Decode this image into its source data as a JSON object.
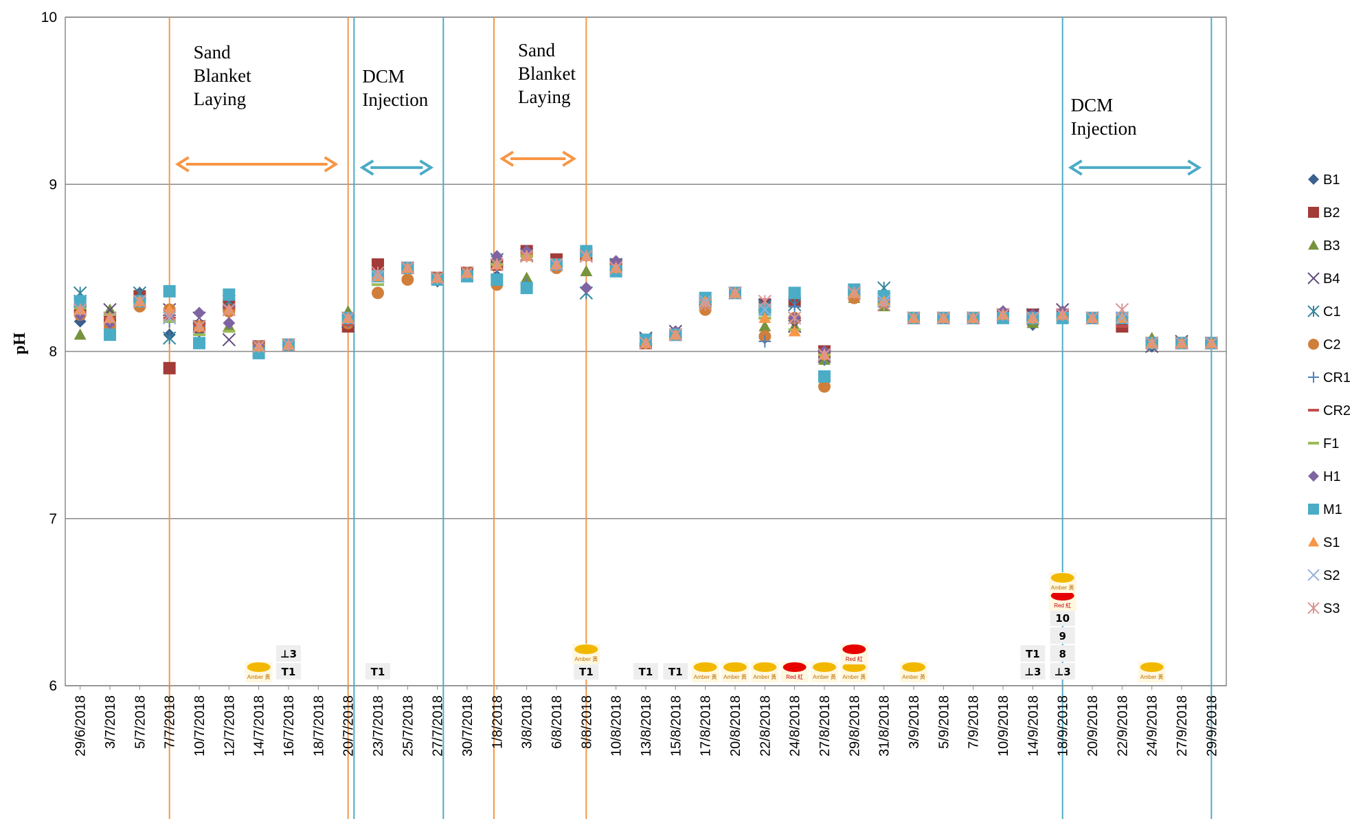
{
  "chart_data": {
    "type": "scatter",
    "title": "",
    "xlabel": "",
    "ylabel": "pH",
    "ylim": [
      6,
      10
    ],
    "yticks": [
      "6",
      "7",
      "8",
      "9",
      "10"
    ],
    "grid": true,
    "legend_position": "right",
    "categories": [
      "29/6/2018",
      "3/7/2018",
      "5/7/2018",
      "7/7/2018",
      "10/7/2018",
      "12/7/2018",
      "14/7/2018",
      "16/7/2018",
      "18/7/2018",
      "20/7/2018",
      "23/7/2018",
      "25/7/2018",
      "27/7/2018",
      "30/7/2018",
      "1/8/2018",
      "3/8/2018",
      "6/8/2018",
      "8/8/2018",
      "10/8/2018",
      "13/8/2018",
      "15/8/2018",
      "17/8/2018",
      "20/8/2018",
      "22/8/2018",
      "24/8/2018",
      "27/8/2018",
      "29/8/2018",
      "31/8/2018",
      "3/9/2018",
      "5/9/2018",
      "7/9/2018",
      "10/9/2018",
      "14/9/2018",
      "18/9/2018",
      "20/9/2018",
      "22/9/2018",
      "24/9/2018",
      "27/9/2018",
      "29/9/2018"
    ],
    "series": [
      {
        "name": "B1",
        "color": "#3b5f8f",
        "marker": "diamond",
        "values": [
          8.18,
          8.15,
          8.35,
          8.1,
          8.12,
          8.3,
          8.02,
          8.04,
          null,
          8.17,
          8.45,
          8.5,
          8.42,
          8.47,
          8.45,
          8.38,
          8.52,
          8.57,
          8.5,
          8.05,
          8.1,
          8.3,
          8.35,
          8.08,
          8.3,
          7.95,
          8.35,
          8.3,
          8.2,
          8.2,
          8.2,
          8.22,
          8.16,
          8.22,
          8.2,
          8.2,
          8.03,
          8.05,
          8.05
        ]
      },
      {
        "name": "B2",
        "color": "#a33b38",
        "marker": "square",
        "values": [
          8.25,
          8.2,
          8.33,
          7.9,
          8.15,
          8.28,
          8.03,
          8.04,
          null,
          8.15,
          8.52,
          8.5,
          8.44,
          8.47,
          8.52,
          8.6,
          8.55,
          8.58,
          8.52,
          8.05,
          8.1,
          8.3,
          8.35,
          8.28,
          8.3,
          8.0,
          8.35,
          8.3,
          8.2,
          8.2,
          8.2,
          8.22,
          8.22,
          8.22,
          8.2,
          8.15,
          8.05,
          8.05,
          8.05
        ]
      },
      {
        "name": "B3",
        "color": "#77933c",
        "marker": "triangle",
        "values": [
          8.1,
          8.25,
          8.3,
          8.2,
          8.15,
          8.15,
          8.03,
          8.04,
          null,
          8.24,
          8.45,
          8.5,
          8.44,
          8.47,
          8.55,
          8.44,
          8.52,
          8.48,
          8.52,
          8.07,
          8.1,
          8.28,
          8.35,
          8.15,
          8.15,
          7.95,
          8.32,
          8.27,
          8.2,
          8.2,
          8.2,
          8.22,
          8.17,
          8.22,
          8.2,
          8.2,
          8.08,
          8.05,
          8.05
        ]
      },
      {
        "name": "B4",
        "color": "#604a7b",
        "marker": "x",
        "values": [
          8.3,
          8.25,
          8.3,
          8.25,
          8.2,
          8.07,
          8.03,
          8.04,
          null,
          8.18,
          8.45,
          8.5,
          8.44,
          8.47,
          8.55,
          8.58,
          8.52,
          8.57,
          8.52,
          8.08,
          8.12,
          8.3,
          8.35,
          8.28,
          8.15,
          7.97,
          8.35,
          8.28,
          8.2,
          8.2,
          8.2,
          8.22,
          8.22,
          8.25,
          8.2,
          8.2,
          8.03,
          8.06,
          8.05
        ]
      },
      {
        "name": "C1",
        "color": "#31859c",
        "marker": "asterisk",
        "values": [
          8.35,
          8.2,
          8.35,
          8.08,
          8.15,
          8.3,
          8.03,
          8.04,
          null,
          8.2,
          8.45,
          8.5,
          8.44,
          8.47,
          8.55,
          8.57,
          8.52,
          8.35,
          8.52,
          8.07,
          8.1,
          8.3,
          8.35,
          8.27,
          8.28,
          7.98,
          8.35,
          8.38,
          8.2,
          8.2,
          8.2,
          8.22,
          8.2,
          8.22,
          8.2,
          8.2,
          8.05,
          8.05,
          8.05
        ]
      },
      {
        "name": "C2",
        "color": "#d07f3b",
        "marker": "circle",
        "values": [
          8.22,
          8.15,
          8.27,
          8.25,
          8.15,
          8.24,
          8.03,
          8.04,
          null,
          8.17,
          8.35,
          8.43,
          8.44,
          8.47,
          8.4,
          8.58,
          8.5,
          8.6,
          8.5,
          8.05,
          8.1,
          8.25,
          8.35,
          8.09,
          8.2,
          7.79,
          8.32,
          8.3,
          8.2,
          8.2,
          8.2,
          8.22,
          8.2,
          8.22,
          8.2,
          8.2,
          8.05,
          8.05,
          8.05
        ]
      },
      {
        "name": "CR1",
        "color": "#4f81bd",
        "marker": "plus",
        "values": [
          8.28,
          8.17,
          8.3,
          8.18,
          8.15,
          8.27,
          8.03,
          8.04,
          null,
          8.18,
          8.45,
          8.5,
          8.44,
          8.47,
          8.45,
          8.4,
          8.52,
          8.57,
          8.5,
          8.05,
          8.1,
          8.3,
          8.35,
          8.06,
          8.27,
          7.96,
          8.35,
          8.3,
          8.2,
          8.2,
          8.2,
          8.22,
          8.2,
          8.22,
          8.2,
          8.2,
          8.05,
          8.05,
          8.05
        ]
      },
      {
        "name": "CR2",
        "color": "#c0504d",
        "marker": "dash",
        "values": [
          8.28,
          8.2,
          8.3,
          8.2,
          8.16,
          8.26,
          8.03,
          8.04,
          null,
          8.16,
          8.48,
          8.5,
          8.44,
          8.47,
          8.52,
          8.57,
          8.52,
          8.57,
          8.5,
          8.05,
          8.1,
          8.3,
          8.35,
          8.2,
          8.2,
          7.98,
          8.35,
          8.3,
          8.2,
          8.2,
          8.2,
          8.22,
          8.2,
          8.22,
          8.2,
          8.15,
          8.05,
          8.05,
          8.05
        ]
      },
      {
        "name": "F1",
        "color": "#9bbb59",
        "marker": "dash",
        "values": [
          8.26,
          8.22,
          8.3,
          8.18,
          8.1,
          8.12,
          8.03,
          8.04,
          null,
          8.2,
          8.4,
          8.5,
          8.44,
          8.47,
          8.52,
          8.57,
          8.52,
          8.57,
          8.5,
          8.05,
          8.1,
          8.3,
          8.35,
          8.2,
          8.13,
          7.98,
          8.33,
          8.28,
          8.2,
          8.2,
          8.2,
          8.22,
          8.17,
          8.22,
          8.2,
          8.2,
          8.05,
          8.05,
          8.05
        ]
      },
      {
        "name": "H1",
        "color": "#8064a2",
        "marker": "diamond",
        "values": [
          8.22,
          8.17,
          8.3,
          8.22,
          8.23,
          8.17,
          8.03,
          8.04,
          null,
          8.2,
          8.45,
          8.5,
          8.44,
          8.47,
          8.57,
          8.6,
          8.52,
          8.38,
          8.54,
          8.05,
          8.12,
          8.3,
          8.35,
          8.25,
          8.2,
          8.0,
          8.35,
          8.3,
          8.2,
          8.2,
          8.2,
          8.24,
          8.22,
          8.24,
          8.2,
          8.2,
          8.05,
          8.05,
          8.05
        ]
      },
      {
        "name": "M1",
        "color": "#4bacc6",
        "marker": "square",
        "values": [
          8.3,
          8.1,
          8.3,
          8.36,
          8.05,
          8.34,
          7.99,
          8.04,
          null,
          8.2,
          8.45,
          8.5,
          8.43,
          8.45,
          8.43,
          8.38,
          8.52,
          8.6,
          8.48,
          8.07,
          8.1,
          8.32,
          8.35,
          8.25,
          8.35,
          7.85,
          8.37,
          8.33,
          8.2,
          8.2,
          8.2,
          8.2,
          8.2,
          8.2,
          8.2,
          8.2,
          8.05,
          8.05,
          8.05
        ]
      },
      {
        "name": "S1",
        "color": "#f79646",
        "marker": "triangle",
        "values": [
          8.25,
          8.2,
          8.3,
          8.25,
          8.15,
          8.25,
          8.03,
          8.04,
          null,
          8.2,
          8.45,
          8.5,
          8.44,
          8.47,
          8.52,
          8.57,
          8.52,
          8.57,
          8.5,
          8.05,
          8.1,
          8.3,
          8.35,
          8.2,
          8.12,
          7.98,
          8.35,
          8.3,
          8.2,
          8.2,
          8.2,
          8.22,
          8.2,
          8.22,
          8.2,
          8.2,
          8.05,
          8.05,
          8.05
        ]
      },
      {
        "name": "S2",
        "color": "#95b3d7",
        "marker": "x",
        "values": [
          8.25,
          8.2,
          8.3,
          8.2,
          8.15,
          8.25,
          8.03,
          8.04,
          null,
          8.2,
          8.45,
          8.5,
          8.44,
          8.47,
          8.52,
          8.57,
          8.52,
          8.57,
          8.5,
          8.05,
          8.1,
          8.3,
          8.35,
          8.25,
          8.2,
          7.98,
          8.35,
          8.3,
          8.2,
          8.2,
          8.2,
          8.22,
          8.2,
          8.22,
          8.2,
          8.2,
          8.05,
          8.05,
          8.05
        ]
      },
      {
        "name": "S3",
        "color": "#d99694",
        "marker": "asterisk",
        "values": [
          8.25,
          8.2,
          8.3,
          8.22,
          8.15,
          8.25,
          8.03,
          8.04,
          null,
          8.2,
          8.47,
          8.5,
          8.44,
          8.47,
          8.52,
          8.57,
          8.52,
          8.57,
          8.5,
          8.05,
          8.1,
          8.28,
          8.35,
          8.3,
          8.2,
          7.98,
          8.35,
          8.28,
          8.2,
          8.2,
          8.2,
          8.22,
          8.2,
          8.22,
          8.2,
          8.25,
          8.05,
          8.05,
          8.05
        ]
      }
    ],
    "phase_annotations": [
      {
        "text": "Sand Blanket Laying",
        "lines": [
          "Sand",
          "Blanket",
          "Laying"
        ],
        "color": "#f79646",
        "from_index": 3.5,
        "to_index": 9.5
      },
      {
        "text": "DCM Injection",
        "lines": [
          "DCM",
          "Injection"
        ],
        "color": "#4bacc6",
        "from_index": 9.7,
        "to_index": 12.7
      },
      {
        "text": "Sand Blanket Laying",
        "lines": [
          "Sand",
          "Blanket",
          "Laying"
        ],
        "color": "#f79646",
        "from_index": 14.4,
        "to_index": 17.5
      },
      {
        "text": "DCM Injection",
        "lines": [
          "DCM",
          "Injection"
        ],
        "color": "#4bacc6",
        "from_index": 33.5,
        "to_index": 38.5
      }
    ],
    "weather_signals": [
      {
        "date_index": 6,
        "icon": "amber-rain-icon",
        "label": "Amber 黃"
      },
      {
        "date_index": 7,
        "icon": "typhoon-signal-icon",
        "label": "T1"
      },
      {
        "date_index": 7,
        "icon": "typhoon-signal-icon",
        "label": "⊥3"
      },
      {
        "date_index": 10,
        "icon": "typhoon-signal-icon",
        "label": "T1"
      },
      {
        "date_index": 17,
        "icon": "typhoon-signal-icon",
        "label": "T1"
      },
      {
        "date_index": 17,
        "icon": "amber-rain-icon",
        "label": "Amber 黃"
      },
      {
        "date_index": 19,
        "icon": "typhoon-signal-icon",
        "label": "T1"
      },
      {
        "date_index": 20,
        "icon": "typhoon-signal-icon",
        "label": "T1"
      },
      {
        "date_index": 21,
        "icon": "amber-rain-icon",
        "label": "Amber 黃"
      },
      {
        "date_index": 22,
        "icon": "amber-rain-icon",
        "label": "Amber 黃"
      },
      {
        "date_index": 23,
        "icon": "amber-rain-icon",
        "label": "Amber 黃"
      },
      {
        "date_index": 24,
        "icon": "red-rain-icon",
        "label": "Red 紅"
      },
      {
        "date_index": 25,
        "icon": "amber-rain-icon",
        "label": "Amber 黃"
      },
      {
        "date_index": 26,
        "icon": "amber-rain-icon",
        "label": "Amber 黃"
      },
      {
        "date_index": 26,
        "icon": "red-rain-icon",
        "label": "Red 紅"
      },
      {
        "date_index": 28,
        "icon": "amber-rain-icon",
        "label": "Amber 黃"
      },
      {
        "date_index": 32,
        "icon": "typhoon-signal-icon",
        "label": "⊥3"
      },
      {
        "date_index": 32,
        "icon": "typhoon-signal-icon",
        "label": "T1"
      },
      {
        "date_index": 33,
        "icon": "typhoon-signal-icon",
        "label": "⊥3"
      },
      {
        "date_index": 33,
        "icon": "typhoon-signal-icon",
        "label": "8"
      },
      {
        "date_index": 33,
        "icon": "typhoon-signal-icon",
        "label": "9"
      },
      {
        "date_index": 33,
        "icon": "typhoon-signal-icon",
        "label": "10"
      },
      {
        "date_index": 33,
        "icon": "red-rain-icon",
        "label": "Red 紅"
      },
      {
        "date_index": 33,
        "icon": "amber-rain-icon",
        "label": "Amber 黃"
      },
      {
        "date_index": 36,
        "icon": "amber-rain-icon",
        "label": "Amber 黃"
      }
    ]
  }
}
